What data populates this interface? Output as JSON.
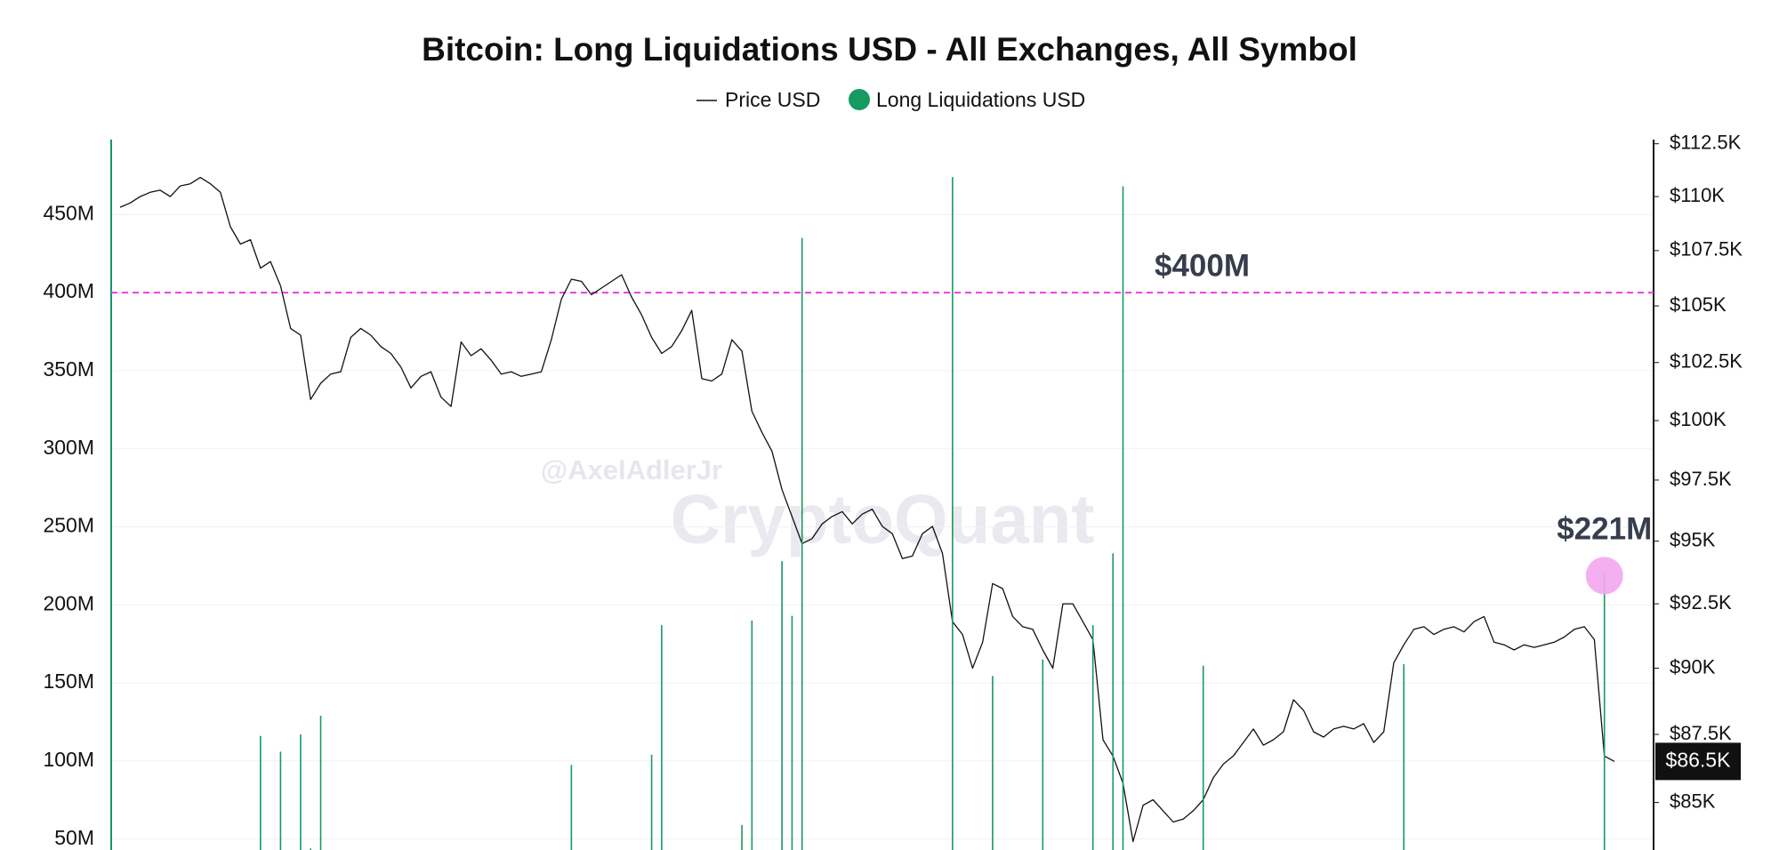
{
  "chart_data": {
    "type": "combo",
    "title": "Bitcoin: Long Liquidations USD - All Exchanges, All Symbol",
    "watermarks": [
      "@AxelAdlerJr",
      "CryptoQuant"
    ],
    "ylim": [
      43000000,
      498000000
    ],
    "yticks": [
      {
        "value": 50000000,
        "label": "50M"
      },
      {
        "value": 100000000,
        "label": "100M"
      },
      {
        "value": 150000000,
        "label": "150M"
      },
      {
        "value": 200000000,
        "label": "200M"
      },
      {
        "value": 250000000,
        "label": "250M"
      },
      {
        "value": 300000000,
        "label": "300M"
      },
      {
        "value": 350000000,
        "label": "350M"
      },
      {
        "value": 400000000,
        "label": "400M"
      },
      {
        "value": 450000000,
        "label": "450M"
      }
    ],
    "y2scale": "log",
    "y2lim": [
      83300,
      112700
    ],
    "y2ticks": [
      {
        "value": 85000,
        "label": "$85K"
      },
      {
        "value": 87500,
        "label": "$87.5K"
      },
      {
        "value": 90000,
        "label": "$90K"
      },
      {
        "value": 92500,
        "label": "$92.5K"
      },
      {
        "value": 95000,
        "label": "$95K"
      },
      {
        "value": 97500,
        "label": "$97.5K"
      },
      {
        "value": 100000,
        "label": "$100K"
      },
      {
        "value": 102500,
        "label": "$102.5K"
      },
      {
        "value": 105000,
        "label": "$105K"
      },
      {
        "value": 107500,
        "label": "$107.5K"
      },
      {
        "value": 110000,
        "label": "$110K"
      },
      {
        "value": 112500,
        "label": "$112.5K"
      }
    ],
    "grid": true,
    "threshold": {
      "value": 400000000,
      "label": "$400M",
      "color": "#e83ee8"
    },
    "callout": {
      "value": 221000000,
      "label": "$221M",
      "color": "#f3a6f0"
    },
    "last_price": {
      "value": 86500,
      "label": "$86.5K"
    },
    "series": [
      {
        "name": "Price USD",
        "type": "line",
        "axis": "y2",
        "color": "#111111",
        "values": [
          109500,
          109700,
          110000,
          110200,
          110300,
          110000,
          110500,
          110600,
          110900,
          110600,
          110200,
          108600,
          107800,
          108000,
          106700,
          107000,
          105900,
          104000,
          103700,
          100900,
          101600,
          102000,
          102100,
          103600,
          104000,
          103700,
          103200,
          102900,
          102300,
          101400,
          101900,
          102100,
          101000,
          100600,
          103400,
          102800,
          103100,
          102600,
          102000,
          102100,
          101900,
          102000,
          102100,
          103500,
          105300,
          106200,
          106100,
          105500,
          105800,
          106100,
          106400,
          105400,
          104600,
          103600,
          102900,
          103200,
          103900,
          104800,
          101800,
          101700,
          102000,
          103500,
          103000,
          100400,
          99500,
          98700,
          97100,
          96000,
          94900,
          95100,
          95700,
          96000,
          96200,
          95700,
          96100,
          96300,
          95600,
          95300,
          94300,
          94400,
          95300,
          95600,
          94500,
          91800,
          91300,
          90000,
          91000,
          93300,
          93100,
          92000,
          91600,
          91500,
          90700,
          90000,
          92500,
          92500,
          91800,
          91100,
          87300,
          86700,
          85700,
          83600,
          84900,
          85100,
          84700,
          84300,
          84400,
          84700,
          85100,
          85900,
          86400,
          86700,
          87200,
          87700,
          87100,
          87300,
          87600,
          88800,
          88400,
          87600,
          87400,
          87700,
          87800,
          87700,
          87900,
          87200,
          87600,
          90200,
          90900,
          91500,
          91600,
          91300,
          91500,
          91600,
          91400,
          91800,
          92000,
          91000,
          90900,
          90700,
          90900,
          90800,
          90900,
          91000,
          91200,
          91500,
          91600,
          91100,
          86700,
          86500
        ]
      },
      {
        "name": "Long Liquidations USD",
        "type": "bar",
        "color": "#159a5f",
        "values": [
          null,
          null,
          null,
          null,
          null,
          null,
          null,
          null,
          null,
          null,
          null,
          null,
          null,
          null,
          116000000,
          null,
          106000000,
          null,
          117000000,
          44000000,
          129000000,
          null,
          null,
          null,
          null,
          null,
          null,
          null,
          null,
          null,
          null,
          null,
          null,
          null,
          null,
          null,
          null,
          null,
          null,
          null,
          null,
          null,
          null,
          null,
          null,
          97500000,
          null,
          null,
          null,
          null,
          null,
          null,
          null,
          104000000,
          187000000,
          null,
          null,
          null,
          null,
          null,
          null,
          null,
          59000000,
          190000000,
          null,
          null,
          228000000,
          193000000,
          435000000,
          null,
          null,
          null,
          null,
          null,
          null,
          null,
          null,
          null,
          null,
          null,
          null,
          null,
          null,
          474000000,
          null,
          null,
          null,
          154500000,
          null,
          null,
          null,
          null,
          165000000,
          null,
          null,
          null,
          null,
          187000000,
          null,
          233000000,
          468000000,
          null,
          null,
          null,
          null,
          null,
          null,
          null,
          161000000,
          null,
          null,
          null,
          null,
          null,
          null,
          null,
          null,
          null,
          null,
          null,
          null,
          null,
          null,
          null,
          null,
          null,
          null,
          null,
          162000000,
          null,
          null,
          null,
          null,
          null,
          null,
          null,
          null,
          null,
          null,
          null,
          null,
          null,
          null,
          null,
          null,
          null,
          null,
          null,
          221000000,
          null
        ]
      }
    ]
  }
}
